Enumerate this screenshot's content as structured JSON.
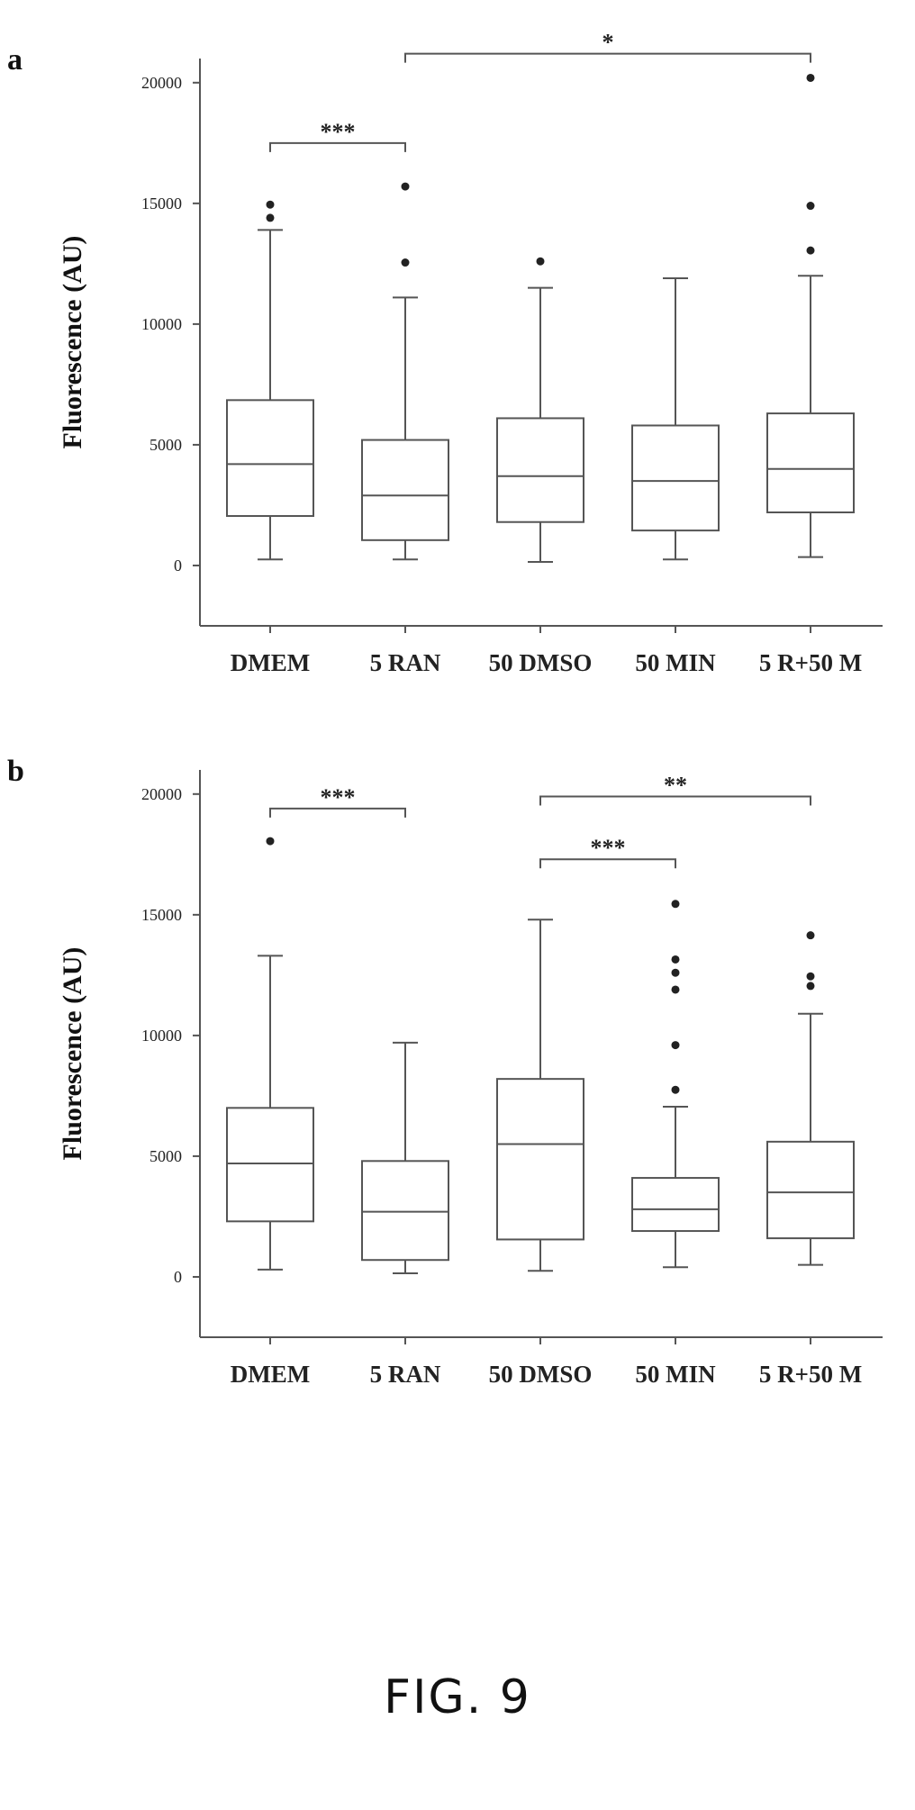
{
  "figure_caption": "FIG. 9",
  "chart_data": [
    {
      "panel_label": "a",
      "type": "box",
      "ylabel": "Fluorescence (AU)",
      "ylim": [
        -2500,
        21000
      ],
      "yticks": [
        0,
        5000,
        10000,
        15000,
        20000
      ],
      "categories": [
        "DMEM",
        "5 RAN",
        "50 DMSO",
        "50 MIN",
        "5 R+50 M"
      ],
      "boxes": [
        {
          "category": "DMEM",
          "whisker_low": 250,
          "q1": 2050,
          "median": 4200,
          "q3": 6850,
          "whisker_high": 13900,
          "outliers": [
            14400,
            14950
          ]
        },
        {
          "category": "5 RAN",
          "whisker_low": 250,
          "q1": 1050,
          "median": 2900,
          "q3": 5200,
          "whisker_high": 11100,
          "outliers": [
            12550,
            15700
          ]
        },
        {
          "category": "50 DMSO",
          "whisker_low": 150,
          "q1": 1800,
          "median": 3700,
          "q3": 6100,
          "whisker_high": 11500,
          "outliers": [
            12600
          ]
        },
        {
          "category": "50 MIN",
          "whisker_low": 250,
          "q1": 1450,
          "median": 3500,
          "q3": 5800,
          "whisker_high": 11900,
          "outliers": []
        },
        {
          "category": "5 R+50 M",
          "whisker_low": 350,
          "q1": 2200,
          "median": 4000,
          "q3": 6300,
          "whisker_high": 12000,
          "outliers": [
            13050,
            14900,
            20200
          ]
        }
      ],
      "significance": [
        {
          "from": "DMEM",
          "to": "5 RAN",
          "y": 17500,
          "label": "***"
        },
        {
          "from": "5 RAN",
          "to": "5 R+50 M",
          "y": 21200,
          "label": "*"
        }
      ]
    },
    {
      "panel_label": "b",
      "type": "box",
      "ylabel": "Fluorescence (AU)",
      "ylim": [
        -2500,
        21000
      ],
      "yticks": [
        0,
        5000,
        10000,
        15000,
        20000
      ],
      "categories": [
        "DMEM",
        "5 RAN",
        "50 DMSO",
        "50 MIN",
        "5 R+50 M"
      ],
      "boxes": [
        {
          "category": "DMEM",
          "whisker_low": 300,
          "q1": 2300,
          "median": 4700,
          "q3": 7000,
          "whisker_high": 13300,
          "outliers": [
            18050
          ]
        },
        {
          "category": "5 RAN",
          "whisker_low": 150,
          "q1": 700,
          "median": 2700,
          "q3": 4800,
          "whisker_high": 9700,
          "outliers": []
        },
        {
          "category": "50 DMSO",
          "whisker_low": 250,
          "q1": 1550,
          "median": 5500,
          "q3": 8200,
          "whisker_high": 14800,
          "outliers": []
        },
        {
          "category": "50 MIN",
          "whisker_low": 400,
          "q1": 1900,
          "median": 2800,
          "q3": 4100,
          "whisker_high": 7050,
          "outliers": [
            7750,
            9600,
            11900,
            12600,
            13150,
            15450
          ]
        },
        {
          "category": "5 R+50 M",
          "whisker_low": 500,
          "q1": 1600,
          "median": 3500,
          "q3": 5600,
          "whisker_high": 10900,
          "outliers": [
            12050,
            12450,
            14150
          ]
        }
      ],
      "significance": [
        {
          "from": "DMEM",
          "to": "5 RAN",
          "y": 19400,
          "label": "***"
        },
        {
          "from": "50 DMSO",
          "to": "50 MIN",
          "y": 17300,
          "label": "***"
        },
        {
          "from": "50 DMSO",
          "to": "5 R+50 M",
          "y": 19900,
          "label": "**"
        }
      ]
    }
  ]
}
